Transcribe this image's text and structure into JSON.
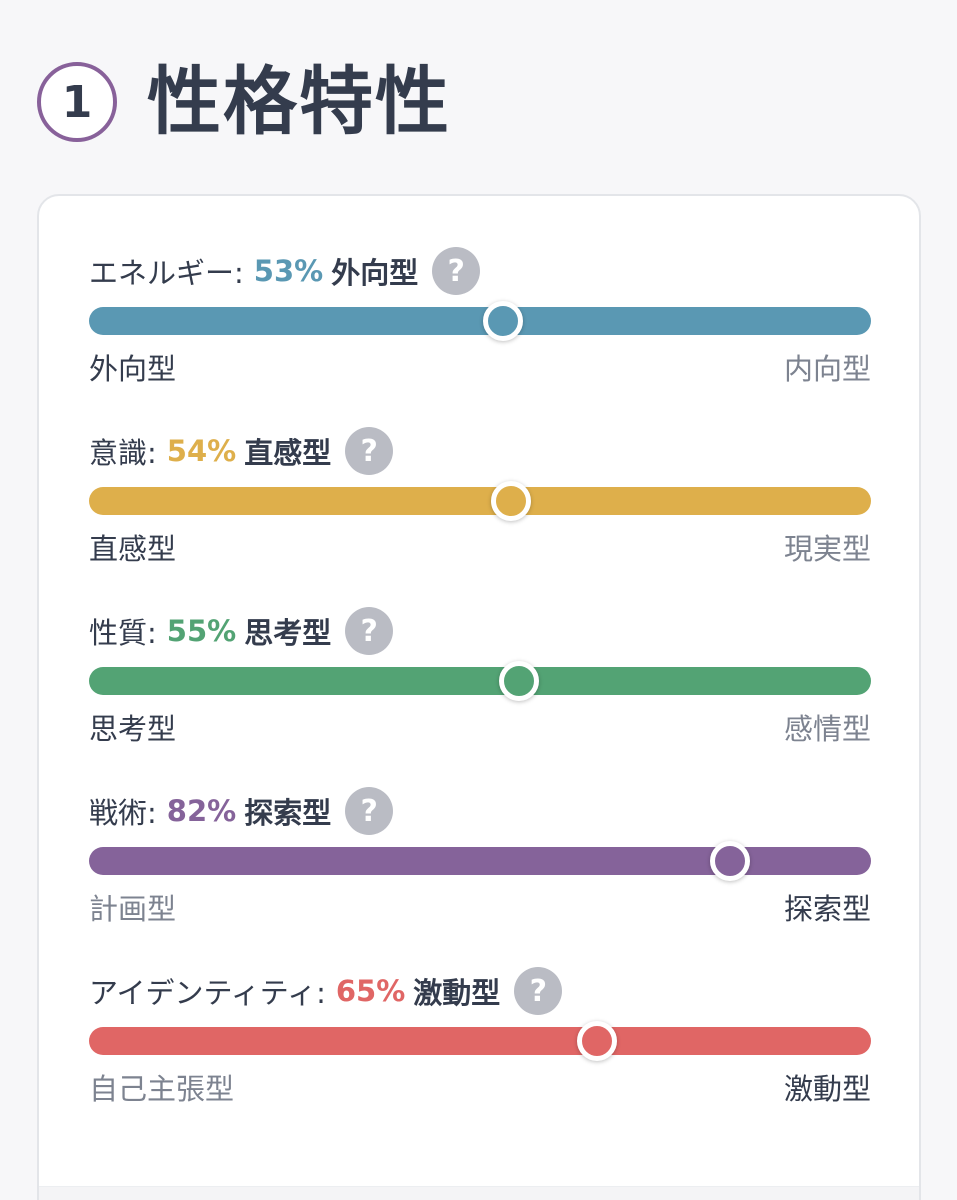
{
  "section": {
    "number": "1",
    "title": "性格特性"
  },
  "traits": [
    {
      "name": "エネルギー:",
      "percent": "53%",
      "type": "外向型",
      "value": 53,
      "color": "#5a98b3",
      "left": "外向型",
      "right": "内向型",
      "active": "left"
    },
    {
      "name": "意識:",
      "percent": "54%",
      "type": "直感型",
      "value": 54,
      "color": "#deaf4b",
      "left": "直感型",
      "right": "現実型",
      "active": "left"
    },
    {
      "name": "性質:",
      "percent": "55%",
      "type": "思考型",
      "value": 55,
      "color": "#53a374",
      "left": "思考型",
      "right": "感情型",
      "active": "left"
    },
    {
      "name": "戦術:",
      "percent": "82%",
      "type": "探索型",
      "value": 82,
      "color": "#85639a",
      "left": "計画型",
      "right": "探索型",
      "active": "right"
    },
    {
      "name": "アイデンティティ:",
      "percent": "65%",
      "type": "激動型",
      "value": 65,
      "color": "#e06665",
      "left": "自己主張型",
      "right": "激動型",
      "active": "right"
    }
  ],
  "help_icon_glyph": "?"
}
